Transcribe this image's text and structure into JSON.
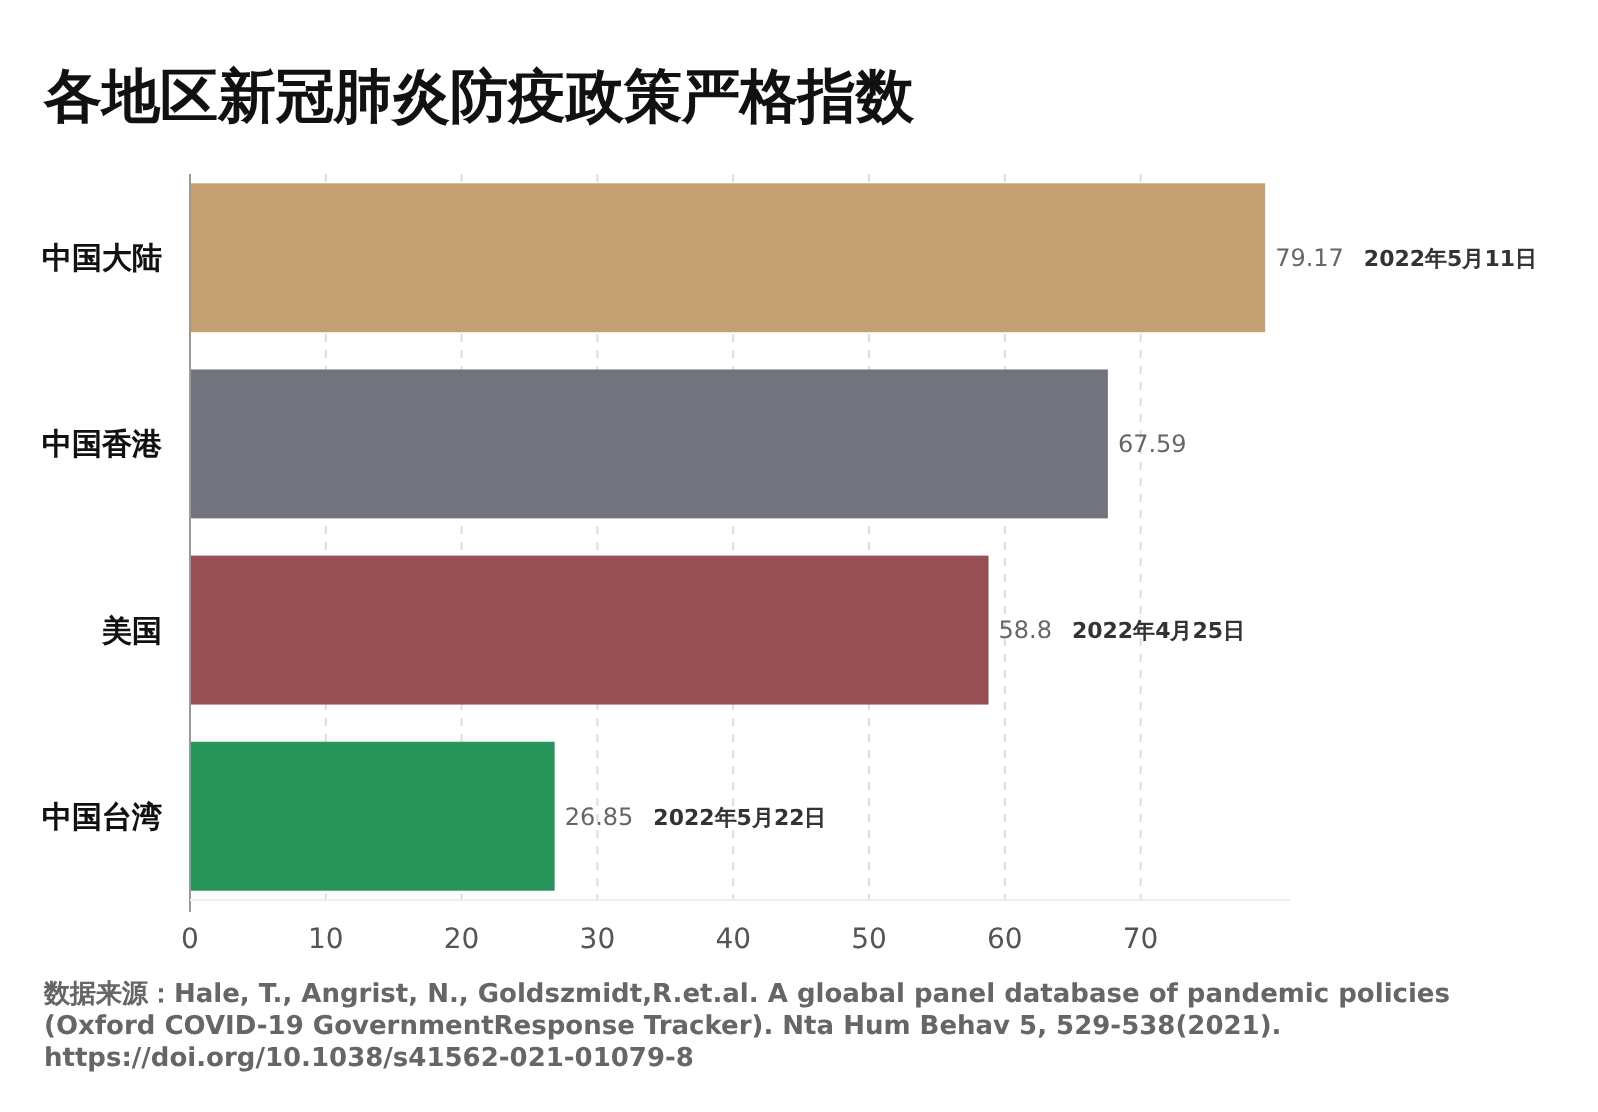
{
  "chart_data": {
    "type": "bar",
    "orientation": "horizontal",
    "title": "各地区新冠肺炎防疫政策严格指数",
    "categories": [
      "中国大陆",
      "中国香港",
      "美国",
      "中国台湾"
    ],
    "values": [
      79.17,
      67.59,
      58.8,
      26.85
    ],
    "value_labels": [
      "79.17 2022年5月11日",
      "67.59",
      "58.8 2022年4月25日",
      "26.85 2022年5月22日"
    ],
    "colors": [
      "#c4a072",
      "#71747c",
      "#954f55",
      "#27945a"
    ],
    "xlim": [
      0,
      81
    ],
    "xticks": [
      0,
      10,
      20,
      30,
      40,
      50,
      60,
      70
    ],
    "grid": "x",
    "annotations": [
      "数据来源：Hale, T., Angrist, N., Goldszmidt,R.et.al. A gloabal panel database of pandemic policies (Oxford COVID-19 GovernmentResponse Tracker). Nta Hum Behav 5, 529-538(2021). https://doi.org/10.1038/s41562-021-01079-8"
    ]
  }
}
